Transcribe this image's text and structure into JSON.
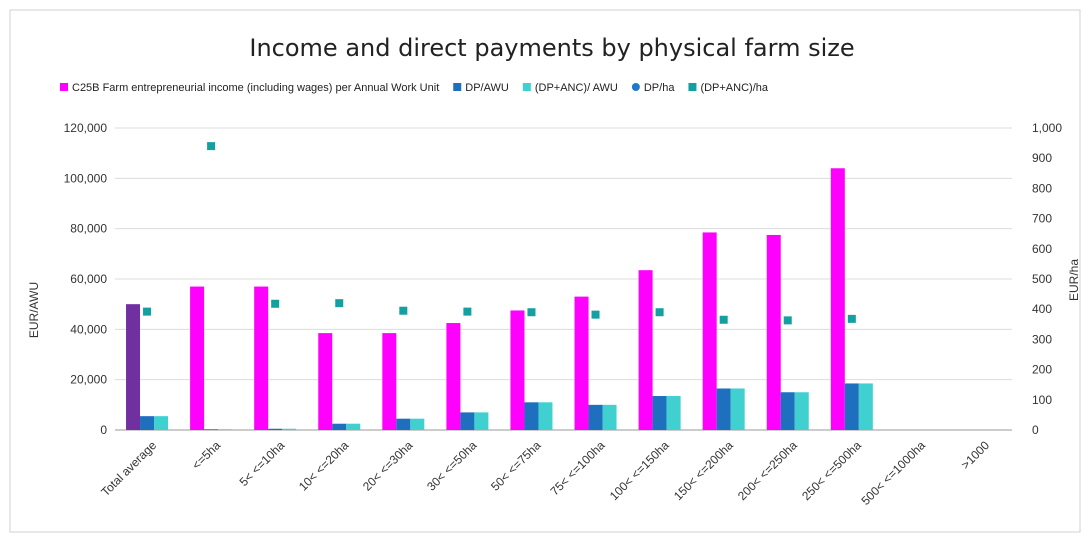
{
  "chart_data": {
    "type": "bar",
    "title": "Income and direct payments by physical farm size",
    "ylabel": "EUR/AWU",
    "y2label": "EUR/ha",
    "ylim": [
      0,
      120000
    ],
    "y2lim": [
      0,
      1000
    ],
    "y_ticks": [
      "0",
      "20,000",
      "40,000",
      "60,000",
      "80,000",
      "100,000",
      "120,000"
    ],
    "y2_ticks": [
      "0",
      "100",
      "200",
      "300",
      "400",
      "500",
      "600",
      "700",
      "800",
      "900",
      "1,000"
    ],
    "categories": [
      "Total average",
      "<=5ha",
      "5< <=10ha",
      "10< <=20ha",
      "20< <=30ha",
      "30< <=50ha",
      "50< <=75ha",
      "75< <=100ha",
      "100< <=150ha",
      "150< <=200ha",
      "200< <=250ha",
      "250< <=500ha",
      "500< <=1000ha",
      ">1000"
    ],
    "legend_position": "top",
    "grid": true,
    "series": [
      {
        "name": "C25B Farm entrepreneurial income (including wages) per Annual Work Unit",
        "axis": "left",
        "kind": "bar",
        "color": "#ff00ff",
        "first_color": "#7030a0",
        "values": [
          50000,
          57000,
          57000,
          38500,
          38500,
          42500,
          47500,
          53000,
          63500,
          78500,
          77500,
          104000,
          null,
          null
        ]
      },
      {
        "name": "DP/AWU",
        "axis": "left",
        "kind": "bar",
        "color": "#1f6fbf",
        "values": [
          5500,
          300,
          500,
          2500,
          4500,
          7000,
          11000,
          10000,
          13500,
          16500,
          15000,
          18500,
          null,
          null
        ]
      },
      {
        "name": "(DP+ANC)/ AWU",
        "axis": "left",
        "kind": "bar",
        "color": "#40d0d0",
        "values": [
          5500,
          300,
          500,
          2500,
          4500,
          7000,
          11000,
          10000,
          13500,
          16500,
          15000,
          18500,
          null,
          null
        ]
      },
      {
        "name": "DP/ha",
        "axis": "right",
        "kind": "marker",
        "color": "#1f78c8",
        "marker": "circle",
        "values": [
          null,
          null,
          null,
          null,
          null,
          null,
          null,
          null,
          null,
          null,
          null,
          null,
          null,
          null
        ]
      },
      {
        "name": "(DP+ANC)/ha",
        "axis": "right",
        "kind": "marker",
        "color": "#13a0a0",
        "marker": "square",
        "values": [
          392,
          940,
          418,
          420,
          395,
          392,
          390,
          382,
          390,
          365,
          363,
          368,
          null,
          null
        ]
      }
    ]
  }
}
